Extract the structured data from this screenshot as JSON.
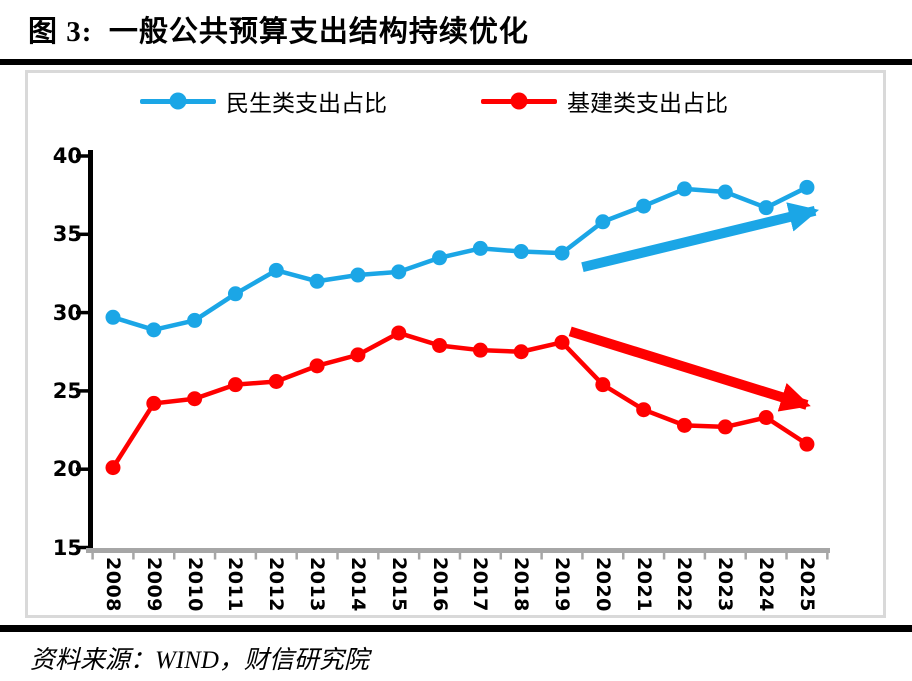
{
  "title": "图 3:  一般公共预算支出结构持续优化",
  "source_note": "资料来源：WIND，财信研究院",
  "chart_data": {
    "type": "line",
    "title": "图 3:  一般公共预算支出结构持续优化",
    "categories": [
      "2008",
      "2009",
      "2010",
      "2011",
      "2012",
      "2013",
      "2014",
      "2015",
      "2016",
      "2017",
      "2018",
      "2019",
      "2020",
      "2021",
      "2022",
      "2023",
      "2024",
      "2025"
    ],
    "series": [
      {
        "name": "民生类支出占比",
        "color": "#1BA6E6",
        "values": [
          29.7,
          28.9,
          29.5,
          31.2,
          32.7,
          32.0,
          32.4,
          32.6,
          33.5,
          34.1,
          33.9,
          33.8,
          35.8,
          36.8,
          37.9,
          37.7,
          36.7,
          38.0
        ]
      },
      {
        "name": "基建类支出占比",
        "color": "#FF0000",
        "values": [
          20.1,
          24.2,
          24.5,
          25.4,
          25.6,
          26.6,
          27.3,
          28.7,
          27.9,
          27.6,
          27.5,
          28.1,
          25.4,
          23.8,
          22.8,
          22.7,
          23.3,
          21.6
        ]
      }
    ],
    "xlabel": "",
    "ylabel": "",
    "ylim": [
      15,
      40
    ],
    "yticks": [
      15,
      20,
      25,
      30,
      35,
      40
    ],
    "grid": false,
    "legend_position": "top",
    "colors": {
      "axis": "#A6A6A6",
      "box_border": "#D9D9D9"
    },
    "annotations": [
      {
        "type": "trend-arrow",
        "series": "民生类支出占比",
        "color": "#1BA6E6",
        "from": {
          "year": 2019.5,
          "value": 32.9
        },
        "to": {
          "year": 2025.2,
          "value": 36.5
        }
      },
      {
        "type": "trend-arrow",
        "series": "基建类支出占比",
        "color": "#FF0000",
        "from": {
          "year": 2019.2,
          "value": 28.8
        },
        "to": {
          "year": 2025.0,
          "value": 24.1
        }
      }
    ]
  }
}
